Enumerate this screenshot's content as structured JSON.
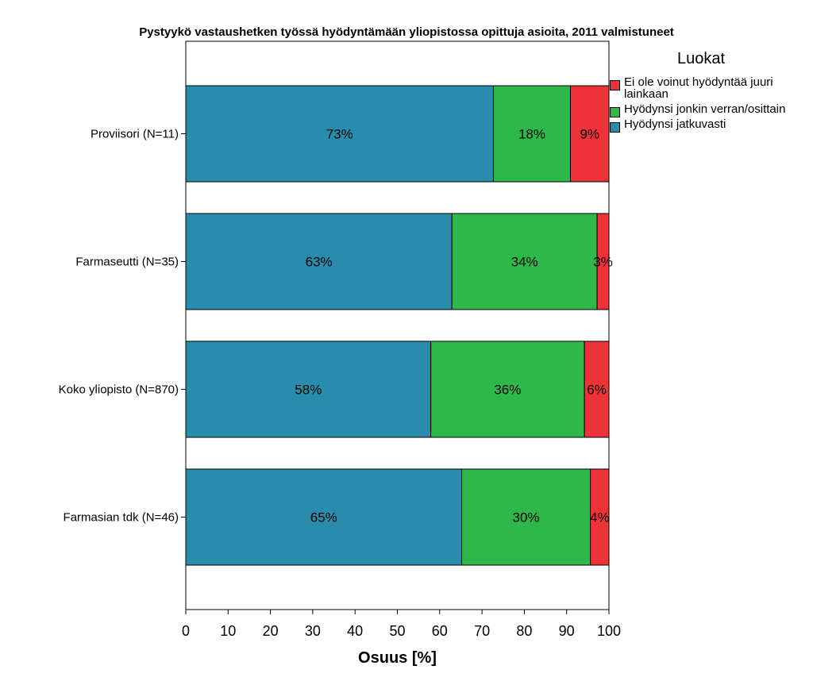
{
  "chart_data": {
    "type": "bar",
    "orientation": "horizontal",
    "stacked": true,
    "title": "Pystyykö vastaushetken työssä hyödyntämään yliopistossa opittuja asioita, 2011 valmistuneet",
    "xlabel": "Osuus [%]",
    "ylabel": "",
    "xlim": [
      0,
      100
    ],
    "xticks": [
      0,
      10,
      20,
      30,
      40,
      50,
      60,
      70,
      80,
      90,
      100
    ],
    "categories": [
      "Proviisori (N=11)",
      "Farmaseutti (N=35)",
      "Koko yliopisto (N=870)",
      "Farmasian tdk (N=46)"
    ],
    "series": [
      {
        "name": "Hyödynsi jatkuvasti",
        "color": "#2a8cac",
        "values": [
          72.7,
          62.9,
          57.9,
          65.2
        ],
        "labels": [
          "73%",
          "63%",
          "58%",
          "65%"
        ]
      },
      {
        "name": "Hyödynsi jonkin verran/osittain",
        "color": "#2eb84a",
        "values": [
          18.2,
          34.3,
          36.3,
          30.4
        ],
        "labels": [
          "18%",
          "34%",
          "36%",
          "30%"
        ]
      },
      {
        "name": "Ei ole voinut hyödyntää juuri lainkaan",
        "color": "#ee3338",
        "values": [
          9.1,
          2.8,
          5.8,
          4.4
        ],
        "labels": [
          "9%",
          "3%",
          "6%",
          "4%"
        ]
      }
    ],
    "legend": {
      "title": "Luokat",
      "position": "top-right",
      "items": [
        {
          "label": "Ei ole voinut hyödyntää juuri lainkaan",
          "color": "#ee3338"
        },
        {
          "label": "Hyödynsi jonkin verran/osittain",
          "color": "#2eb84a"
        },
        {
          "label": "Hyödynsi jatkuvasti",
          "color": "#2a8cac"
        }
      ]
    },
    "grid": false
  }
}
